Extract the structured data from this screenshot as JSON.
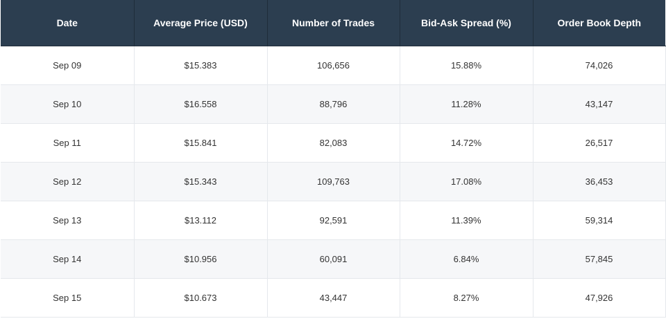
{
  "table": {
    "headers": [
      "Date",
      "Average Price (USD)",
      "Number of Trades",
      "Bid-Ask Spread (%)",
      "Order Book Depth"
    ],
    "rows": [
      [
        "Sep 09",
        "$15.383",
        "106,656",
        "15.88%",
        "74,026"
      ],
      [
        "Sep 10",
        "$16.558",
        "88,796",
        "11.28%",
        "43,147"
      ],
      [
        "Sep 11",
        "$15.841",
        "82,083",
        "14.72%",
        "26,517"
      ],
      [
        "Sep 12",
        "$15.343",
        "109,763",
        "17.08%",
        "36,453"
      ],
      [
        "Sep 13",
        "$13.112",
        "92,591",
        "11.39%",
        "59,314"
      ],
      [
        "Sep 14",
        "$10.956",
        "60,091",
        "6.84%",
        "57,845"
      ],
      [
        "Sep 15",
        "$10.673",
        "43,447",
        "8.27%",
        "47,926"
      ]
    ]
  },
  "colors": {
    "header_bg": "#2c3e50",
    "header_text": "#ffffff",
    "row_alt_bg": "#f6f7f9",
    "border": "#e5e8ec"
  }
}
